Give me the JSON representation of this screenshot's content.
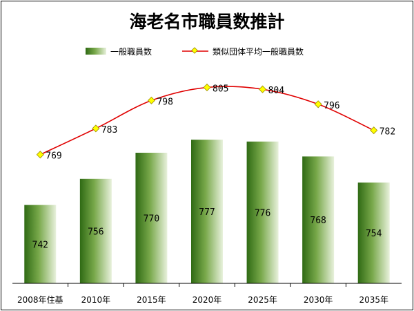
{
  "chart_data": {
    "type": "bar",
    "title": "海老名市職員数推計",
    "categories": [
      "2008年住基",
      "2010年",
      "2015年",
      "2020年",
      "2025年",
      "2030年",
      "2035年"
    ],
    "series": [
      {
        "name": "一般職員数",
        "type": "bar",
        "values": [
          742,
          756,
          770,
          777,
          776,
          768,
          754
        ],
        "color": "#3d7a1e"
      },
      {
        "name": "類似団体平均一般職員数",
        "type": "line",
        "values": [
          769,
          783,
          798,
          805,
          804,
          796,
          782
        ],
        "color": "#e00000",
        "marker_color": "#ffff00"
      }
    ],
    "xlabel": "",
    "ylabel": "",
    "ylim": [
      700,
      820
    ],
    "grid": false,
    "legend": "top"
  }
}
